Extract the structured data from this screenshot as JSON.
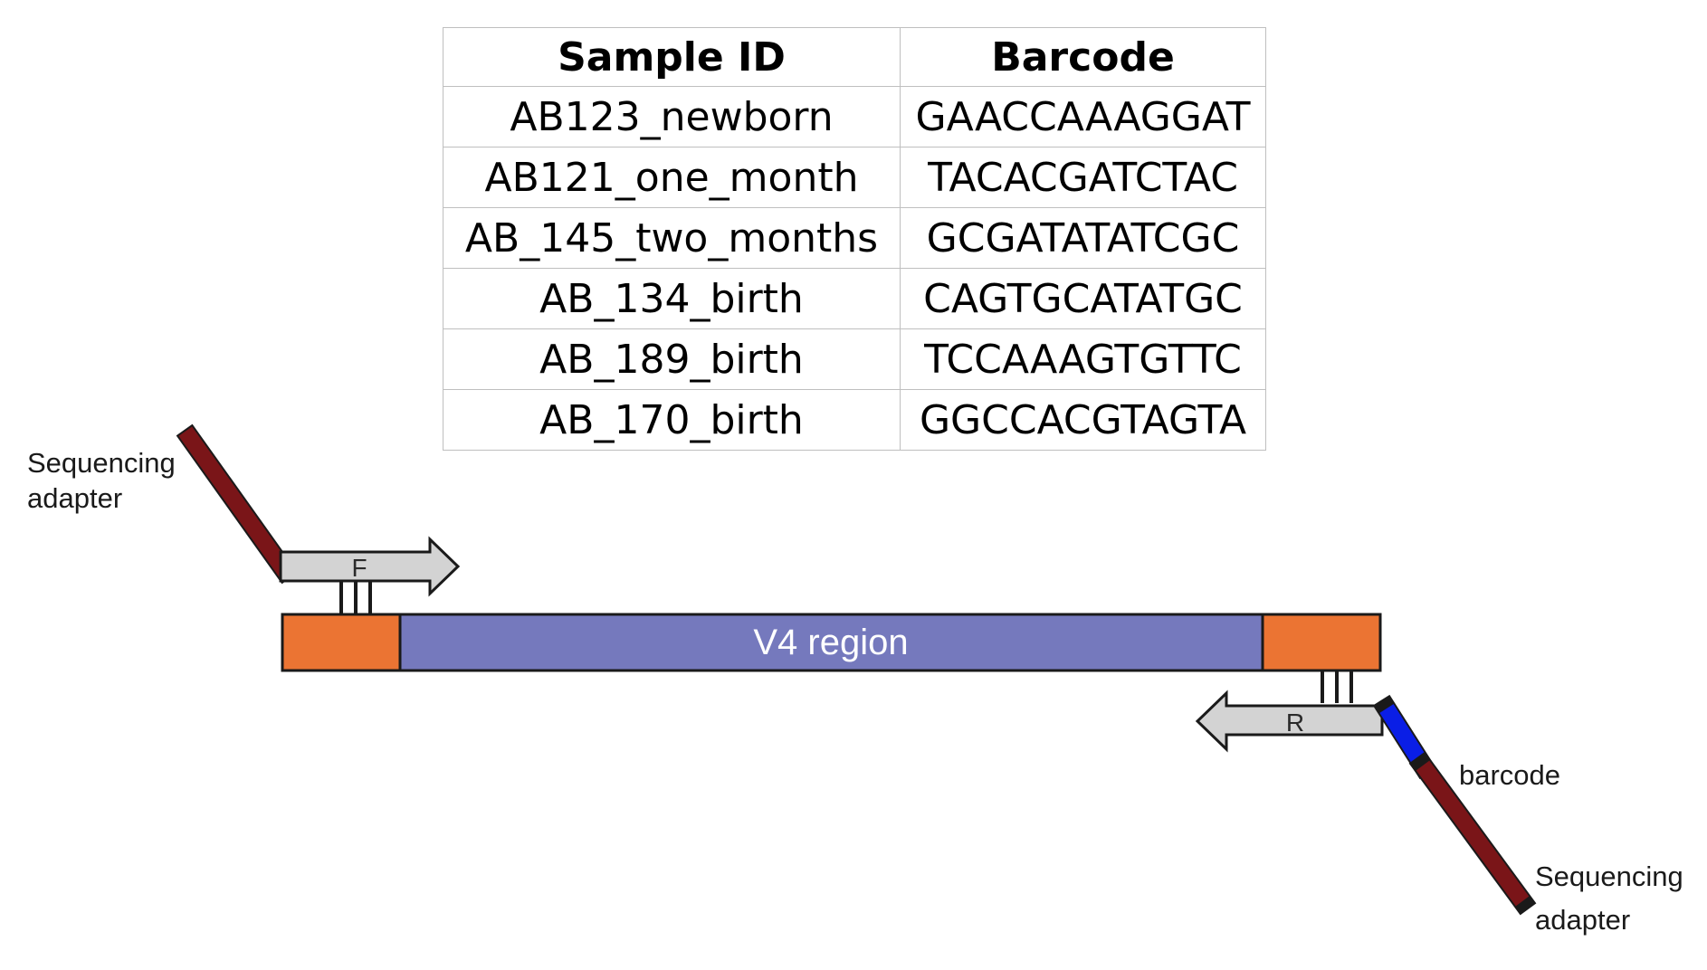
{
  "table": {
    "headers": [
      "Sample ID",
      "Barcode"
    ],
    "rows": [
      {
        "sample_id": "AB123_newborn",
        "barcode": "GAACCAAAGGAT"
      },
      {
        "sample_id": "AB121_one_month",
        "barcode": "TACACGATCTAC"
      },
      {
        "sample_id": "AB_145_two_months",
        "barcode": "GCGATATATCGC"
      },
      {
        "sample_id": "AB_134_birth",
        "barcode": "CAGTGCATATGC"
      },
      {
        "sample_id": "AB_189_birth",
        "barcode": "TCCAAAGTGTTC"
      },
      {
        "sample_id": "AB_170_birth",
        "barcode": "GGCCACGTAGTA"
      }
    ]
  },
  "diagram": {
    "region_label": "V4 region",
    "forward_primer_label": "F",
    "reverse_primer_label": "R",
    "adapter_label_line1": "Sequencing",
    "adapter_label_line2": "adapter",
    "barcode_label": "barcode",
    "colors": {
      "region": "#7579bd",
      "primer_site": "#eb7433",
      "adapter": "#7a1518",
      "barcode": "#0a1ee6",
      "primer": "#d3d3d3"
    }
  }
}
